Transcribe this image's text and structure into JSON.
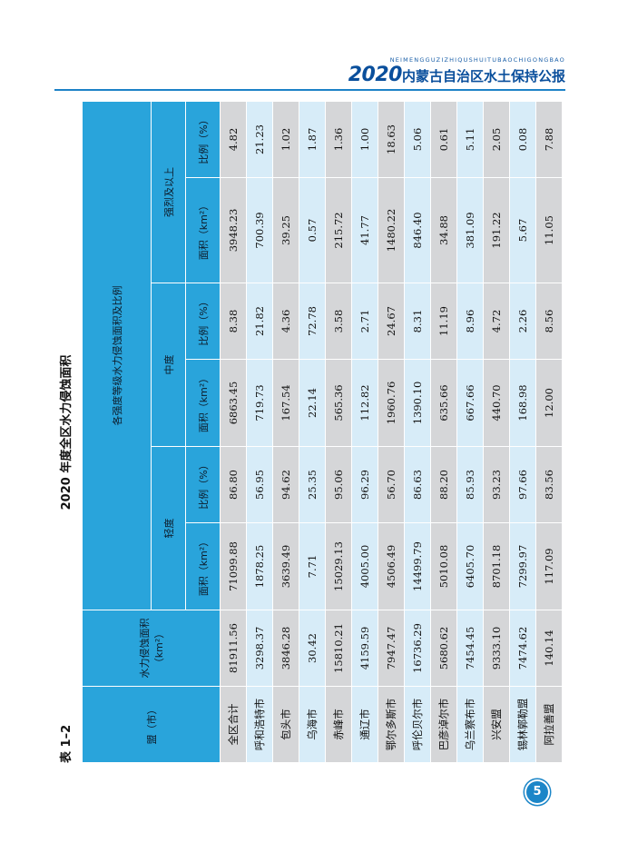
{
  "header": {
    "latin": "NEIMENGGUZIZHIQUSHUITUBAOCHIGONGBAO",
    "year": "2020",
    "name": "内蒙古自治区水土保持公报"
  },
  "caption": {
    "number": "表 1–2",
    "title": "2020 年度全区水力侵蚀面积"
  },
  "table": {
    "col_region": "盟（市）",
    "col_total": "水力侵蚀面积（km²）",
    "col_group": "各强度等级水力侵蚀面积及比例",
    "levels": [
      "轻度",
      "中度",
      "强烈及以上"
    ],
    "sub_area": "面积（km²）",
    "sub_ratio": "比例（%）",
    "rows": [
      {
        "region": "全区合计",
        "total": "81911.56",
        "a1": "71099.88",
        "r1": "86.80",
        "a2": "6863.45",
        "r2": "8.38",
        "a3": "3948.23",
        "r3": "4.82"
      },
      {
        "region": "呼和浩特市",
        "total": "3298.37",
        "a1": "1878.25",
        "r1": "56.95",
        "a2": "719.73",
        "r2": "21.82",
        "a3": "700.39",
        "r3": "21.23"
      },
      {
        "region": "包头市",
        "total": "3846.28",
        "a1": "3639.49",
        "r1": "94.62",
        "a2": "167.54",
        "r2": "4.36",
        "a3": "39.25",
        "r3": "1.02"
      },
      {
        "region": "乌海市",
        "total": "30.42",
        "a1": "7.71",
        "r1": "25.35",
        "a2": "22.14",
        "r2": "72.78",
        "a3": "0.57",
        "r3": "1.87"
      },
      {
        "region": "赤峰市",
        "total": "15810.21",
        "a1": "15029.13",
        "r1": "95.06",
        "a2": "565.36",
        "r2": "3.58",
        "a3": "215.72",
        "r3": "1.36"
      },
      {
        "region": "通辽市",
        "total": "4159.59",
        "a1": "4005.00",
        "r1": "96.29",
        "a2": "112.82",
        "r2": "2.71",
        "a3": "41.77",
        "r3": "1.00"
      },
      {
        "region": "鄂尔多斯市",
        "total": "7947.47",
        "a1": "4506.49",
        "r1": "56.70",
        "a2": "1960.76",
        "r2": "24.67",
        "a3": "1480.22",
        "r3": "18.63"
      },
      {
        "region": "呼伦贝尔市",
        "total": "16736.29",
        "a1": "14499.79",
        "r1": "86.63",
        "a2": "1390.10",
        "r2": "8.31",
        "a3": "846.40",
        "r3": "5.06"
      },
      {
        "region": "巴彦淖尔市",
        "total": "5680.62",
        "a1": "5010.08",
        "r1": "88.20",
        "a2": "635.66",
        "r2": "11.19",
        "a3": "34.88",
        "r3": "0.61"
      },
      {
        "region": "乌兰察布市",
        "total": "7454.45",
        "a1": "6405.70",
        "r1": "85.93",
        "a2": "667.66",
        "r2": "8.96",
        "a3": "381.09",
        "r3": "5.11"
      },
      {
        "region": "兴安盟",
        "total": "9333.10",
        "a1": "8701.18",
        "r1": "93.23",
        "a2": "440.70",
        "r2": "4.72",
        "a3": "191.22",
        "r3": "2.05"
      },
      {
        "region": "锡林郭勒盟",
        "total": "7474.62",
        "a1": "7299.97",
        "r1": "97.66",
        "a2": "168.98",
        "r2": "2.26",
        "a3": "5.67",
        "r3": "0.08"
      },
      {
        "region": "阿拉善盟",
        "total": "140.14",
        "a1": "117.09",
        "r1": "83.56",
        "a2": "12.00",
        "r2": "8.56",
        "a3": "11.05",
        "r3": "7.88"
      }
    ]
  },
  "page_number": "5"
}
